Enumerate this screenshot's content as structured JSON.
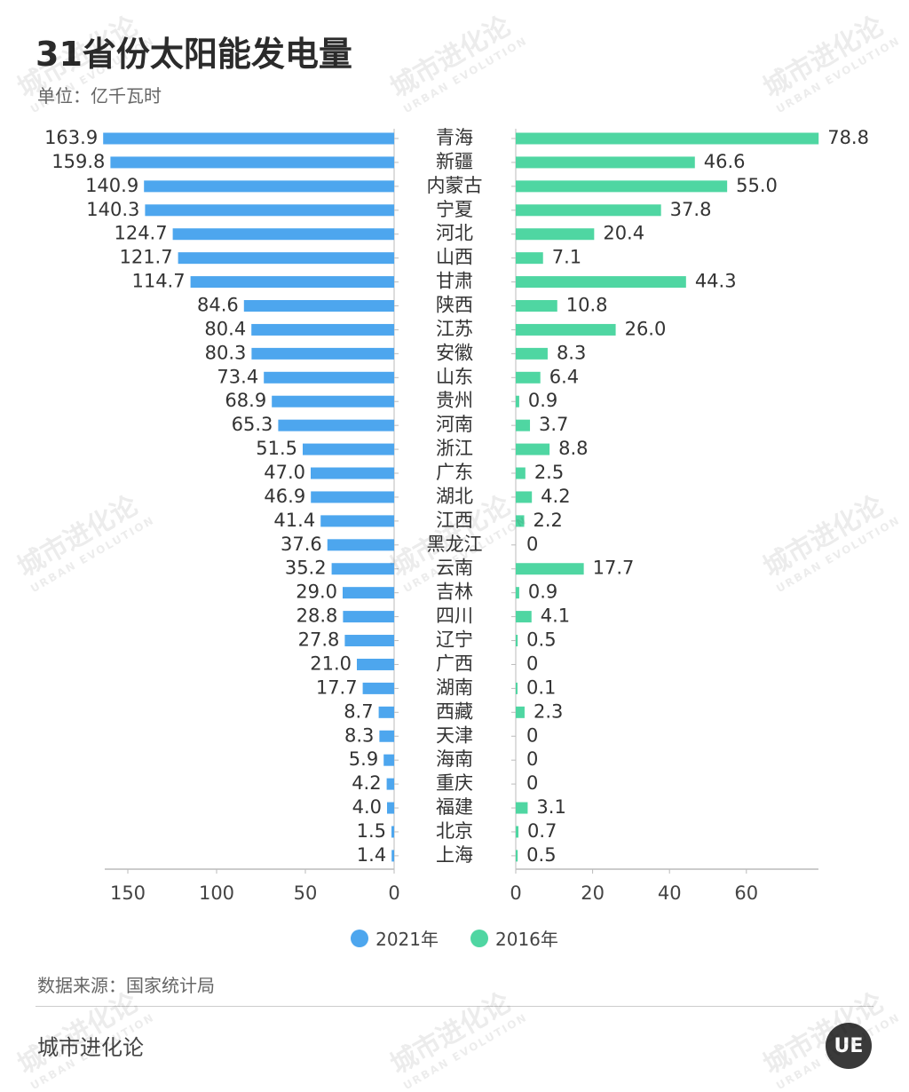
{
  "title": "31省份太阳能发电量",
  "unit": "单位：亿千瓦时",
  "source": "数据来源：国家统计局",
  "brand": "城市进化论",
  "logo_text": "UE",
  "watermark": {
    "cn": "城市进化论",
    "en": "URBAN EVOLUTION"
  },
  "colors": {
    "series_2021": "#4da6ee",
    "series_2016": "#4fd6a2",
    "axis": "#bbbbbb"
  },
  "chart_data": {
    "type": "bar",
    "orientation": "horizontal",
    "layout": "butterfly",
    "categories": [
      "青海",
      "新疆",
      "内蒙古",
      "宁夏",
      "河北",
      "山西",
      "甘肃",
      "陕西",
      "江苏",
      "安徽",
      "山东",
      "贵州",
      "河南",
      "浙江",
      "广东",
      "湖北",
      "江西",
      "黑龙江",
      "云南",
      "吉林",
      "四川",
      "辽宁",
      "广西",
      "湖南",
      "西藏",
      "天津",
      "海南",
      "重庆",
      "福建",
      "北京",
      "上海"
    ],
    "series": [
      {
        "name": "2021年",
        "values": [
          163.9,
          159.8,
          140.9,
          140.3,
          124.7,
          121.7,
          114.7,
          84.6,
          80.4,
          80.3,
          73.4,
          68.9,
          65.3,
          51.5,
          47.0,
          46.9,
          41.4,
          37.6,
          35.2,
          29.0,
          28.8,
          27.8,
          21.0,
          17.7,
          8.7,
          8.3,
          5.9,
          4.2,
          4.0,
          1.5,
          1.4
        ],
        "labels": [
          "163.9",
          "159.8",
          "140.9",
          "140.3",
          "124.7",
          "121.7",
          "114.7",
          "84.6",
          "80.4",
          "80.3",
          "73.4",
          "68.9",
          "65.3",
          "51.5",
          "47.0",
          "46.9",
          "41.4",
          "37.6",
          "35.2",
          "29.0",
          "28.8",
          "27.8",
          "21.0",
          "17.7",
          "8.7",
          "8.3",
          "5.9",
          "4.2",
          "4.0",
          "1.5",
          "1.4"
        ],
        "xlim": [
          0,
          165
        ],
        "ticks": [
          "150",
          "100",
          "50",
          "0"
        ],
        "tick_values": [
          150,
          100,
          50,
          0
        ]
      },
      {
        "name": "2016年",
        "values": [
          78.8,
          46.6,
          55.0,
          37.8,
          20.4,
          7.1,
          44.3,
          10.8,
          26.0,
          8.3,
          6.4,
          0.9,
          3.7,
          8.8,
          2.5,
          4.2,
          2.2,
          0,
          17.7,
          0.9,
          4.1,
          0.5,
          0,
          0.1,
          2.3,
          0,
          0,
          0,
          3.1,
          0.7,
          0.5
        ],
        "labels": [
          "78.8",
          "46.6",
          "55.0",
          "37.8",
          "20.4",
          "7.1",
          "44.3",
          "10.8",
          "26.0",
          "8.3",
          "6.4",
          "0.9",
          "3.7",
          "8.8",
          "2.5",
          "4.2",
          "2.2",
          "0",
          "17.7",
          "0.9",
          "4.1",
          "0.5",
          "0",
          "0.1",
          "2.3",
          "0",
          "0",
          "0",
          "3.1",
          "0.7",
          "0.5"
        ],
        "xlim": [
          0,
          79
        ],
        "ticks": [
          "0",
          "20",
          "40",
          "60"
        ],
        "tick_values": [
          0,
          20,
          40,
          60
        ]
      }
    ],
    "legend_position": "bottom-center",
    "grid": false
  }
}
